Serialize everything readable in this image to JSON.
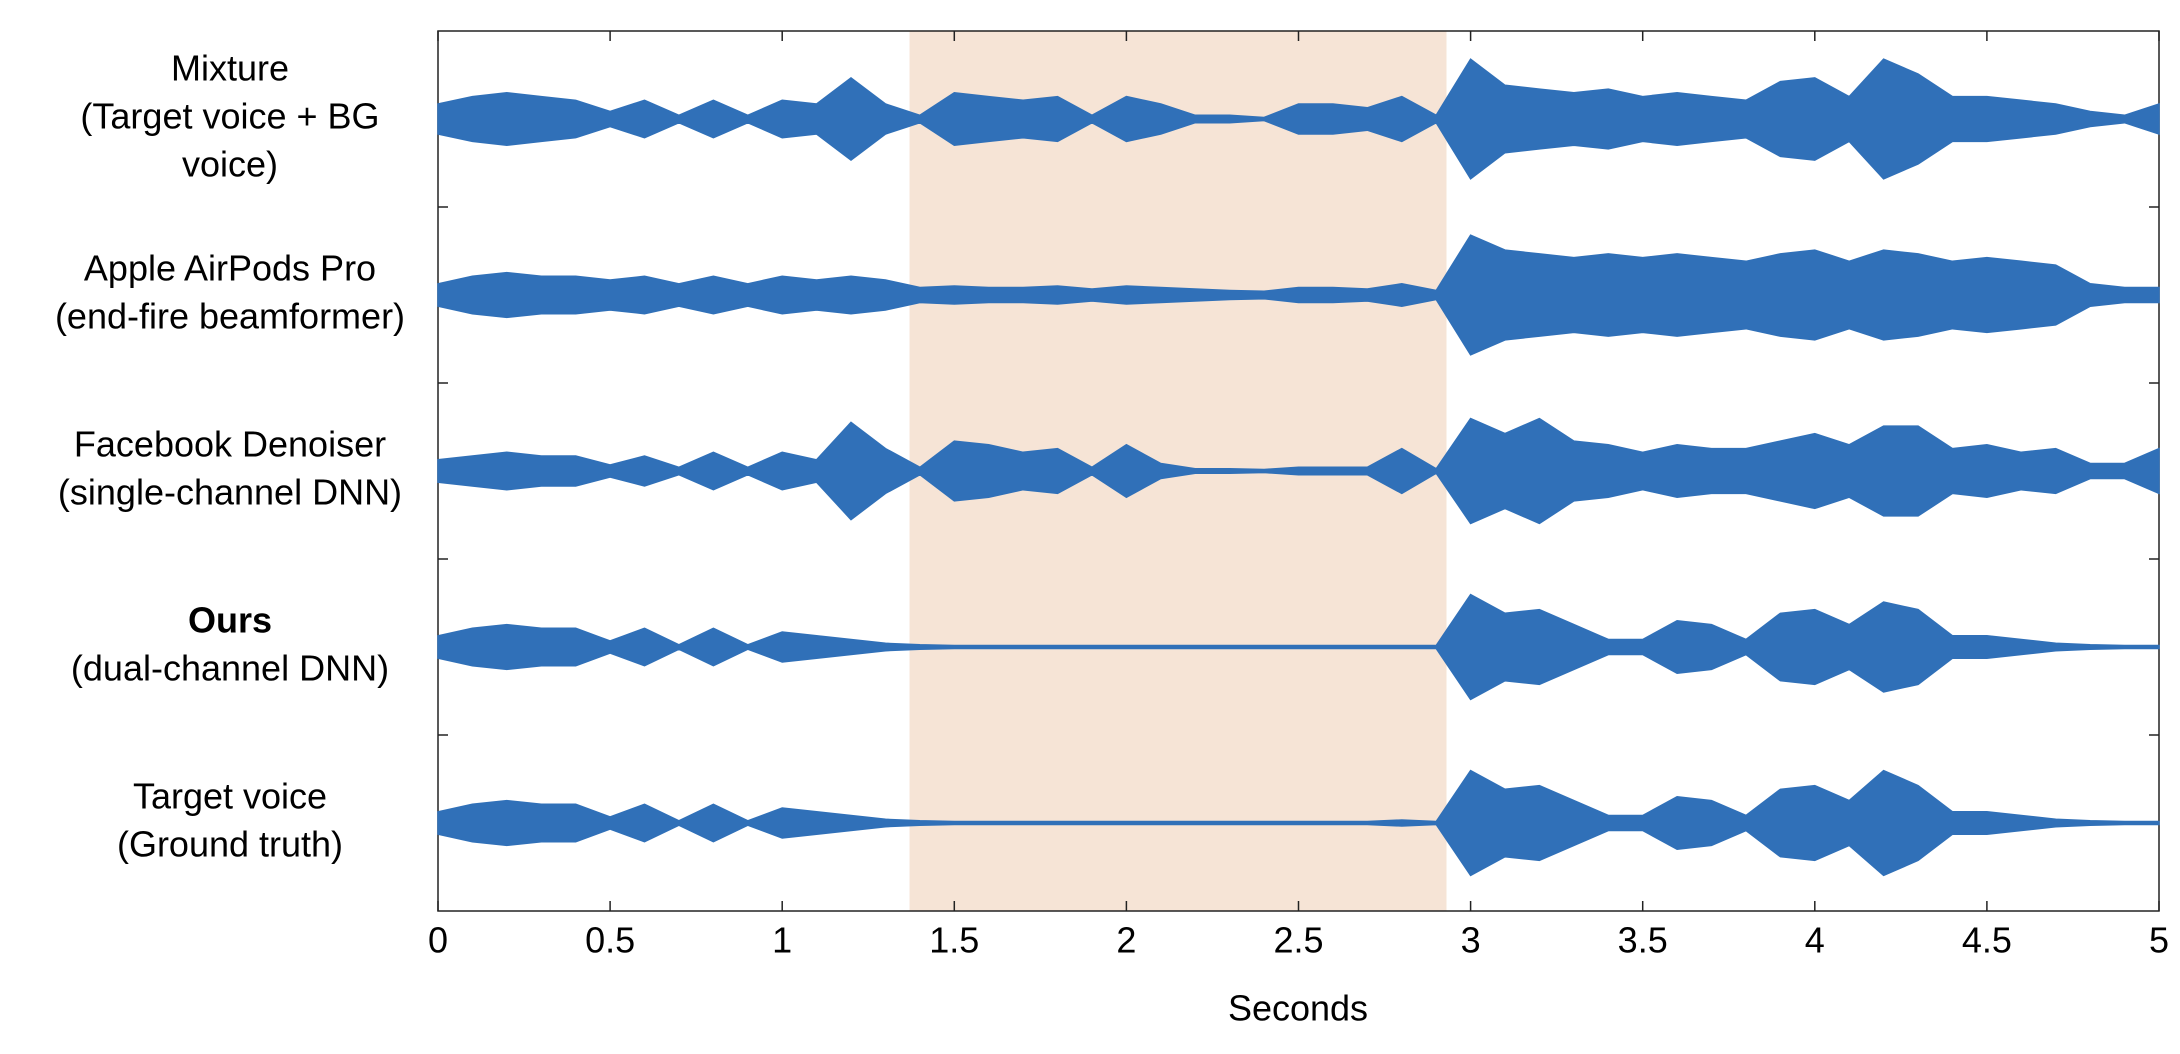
{
  "chart_data": {
    "type": "waveform",
    "xlabel": "Seconds",
    "xlim": [
      0,
      5
    ],
    "xticks": [
      0,
      0.5,
      1,
      1.5,
      2,
      2.5,
      3,
      3.5,
      4,
      4.5,
      5
    ],
    "highlight": {
      "from": 1.37,
      "to": 2.93,
      "color": "#f6e4d6"
    },
    "color": "#3070b8",
    "x": [
      0,
      0.1,
      0.2,
      0.3,
      0.4,
      0.5,
      0.6,
      0.7,
      0.8,
      0.9,
      1,
      1.1,
      1.2,
      1.3,
      1.4,
      1.5,
      1.6,
      1.7,
      1.8,
      1.9,
      2,
      2.1,
      2.2,
      2.3,
      2.4,
      2.5,
      2.6,
      2.7,
      2.8,
      2.9,
      3,
      3.1,
      3.2,
      3.3,
      3.4,
      3.5,
      3.6,
      3.7,
      3.8,
      3.9,
      4,
      4.1,
      4.2,
      4.3,
      4.4,
      4.5,
      4.6,
      4.7,
      4.8,
      4.9,
      5
    ],
    "series": [
      {
        "label_lines": [
          "Mixture",
          "(Target voice + BG",
          "voice)"
        ],
        "bold_first": false,
        "values": [
          0.2,
          0.3,
          0.35,
          0.3,
          0.25,
          0.1,
          0.25,
          0.05,
          0.25,
          0.05,
          0.25,
          0.2,
          0.55,
          0.2,
          0.05,
          0.35,
          0.3,
          0.25,
          0.3,
          0.05,
          0.3,
          0.2,
          0.05,
          0.05,
          0.02,
          0.2,
          0.2,
          0.15,
          0.3,
          0.05,
          0.8,
          0.45,
          0.4,
          0.35,
          0.4,
          0.3,
          0.35,
          0.3,
          0.25,
          0.5,
          0.55,
          0.3,
          0.8,
          0.6,
          0.3,
          0.3,
          0.25,
          0.2,
          0.1,
          0.05,
          0.2
        ]
      },
      {
        "label_lines": [
          "Apple AirPods Pro",
          "(end-fire beamformer)"
        ],
        "bold_first": false,
        "values": [
          0.15,
          0.25,
          0.3,
          0.25,
          0.25,
          0.2,
          0.25,
          0.15,
          0.25,
          0.15,
          0.25,
          0.2,
          0.25,
          0.2,
          0.1,
          0.12,
          0.1,
          0.1,
          0.12,
          0.08,
          0.12,
          0.1,
          0.08,
          0.06,
          0.05,
          0.1,
          0.1,
          0.08,
          0.15,
          0.06,
          0.8,
          0.6,
          0.55,
          0.5,
          0.55,
          0.5,
          0.55,
          0.5,
          0.45,
          0.55,
          0.6,
          0.45,
          0.6,
          0.55,
          0.45,
          0.5,
          0.45,
          0.4,
          0.15,
          0.1,
          0.1
        ]
      },
      {
        "label_lines": [
          "Facebook Denoiser",
          "(single-channel DNN)"
        ],
        "bold_first": false,
        "values": [
          0.15,
          0.2,
          0.25,
          0.2,
          0.2,
          0.08,
          0.2,
          0.05,
          0.25,
          0.05,
          0.25,
          0.15,
          0.65,
          0.3,
          0.05,
          0.4,
          0.35,
          0.25,
          0.3,
          0.05,
          0.35,
          0.1,
          0.03,
          0.03,
          0.02,
          0.05,
          0.05,
          0.05,
          0.3,
          0.03,
          0.7,
          0.5,
          0.7,
          0.4,
          0.35,
          0.25,
          0.35,
          0.3,
          0.3,
          0.4,
          0.5,
          0.35,
          0.6,
          0.6,
          0.3,
          0.35,
          0.25,
          0.3,
          0.1,
          0.1,
          0.3
        ]
      },
      {
        "label_lines": [
          "Ours",
          "(dual-channel DNN)"
        ],
        "bold_first": true,
        "values": [
          0.15,
          0.25,
          0.3,
          0.25,
          0.25,
          0.08,
          0.25,
          0.03,
          0.25,
          0.03,
          0.2,
          0.15,
          0.1,
          0.05,
          0.03,
          0.02,
          0.02,
          0.02,
          0.02,
          0.02,
          0.02,
          0.02,
          0.02,
          0.02,
          0.02,
          0.02,
          0.02,
          0.02,
          0.02,
          0.02,
          0.7,
          0.45,
          0.5,
          0.3,
          0.1,
          0.1,
          0.35,
          0.3,
          0.1,
          0.45,
          0.5,
          0.3,
          0.6,
          0.5,
          0.15,
          0.15,
          0.1,
          0.05,
          0.03,
          0.02,
          0.02
        ]
      },
      {
        "label_lines": [
          "Target voice",
          "(Ground truth)"
        ],
        "bold_first": false,
        "values": [
          0.15,
          0.25,
          0.3,
          0.25,
          0.25,
          0.08,
          0.25,
          0.03,
          0.25,
          0.03,
          0.2,
          0.15,
          0.1,
          0.05,
          0.03,
          0.02,
          0.02,
          0.02,
          0.02,
          0.02,
          0.02,
          0.02,
          0.02,
          0.02,
          0.02,
          0.02,
          0.02,
          0.02,
          0.04,
          0.02,
          0.7,
          0.45,
          0.5,
          0.3,
          0.1,
          0.1,
          0.35,
          0.3,
          0.1,
          0.45,
          0.5,
          0.3,
          0.7,
          0.5,
          0.15,
          0.15,
          0.1,
          0.05,
          0.03,
          0.02,
          0.02
        ]
      }
    ]
  }
}
